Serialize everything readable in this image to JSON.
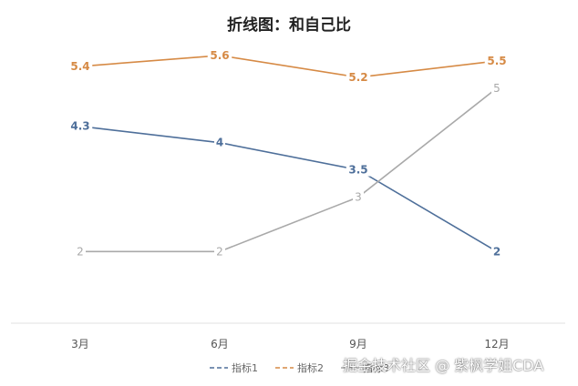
{
  "chart_data": {
    "type": "line",
    "title": "折线图：和自己比",
    "categories": [
      "3月",
      "6月",
      "9月",
      "12月"
    ],
    "series": [
      {
        "name": "指标1",
        "values": [
          4.3,
          4,
          3.5,
          2
        ],
        "color": "#4e6f9a",
        "label_weight": "bold"
      },
      {
        "name": "指标2",
        "values": [
          5.4,
          5.6,
          5.2,
          5.5
        ],
        "color": "#d68a45",
        "label_weight": "bold"
      },
      {
        "name": "指标3",
        "values": [
          2,
          2,
          3,
          5
        ],
        "color": "#a9a9a9",
        "label_weight": "normal"
      }
    ],
    "ylim": [
      0,
      6
    ],
    "grid": false,
    "legend": "bottom-right",
    "xlabel": "",
    "ylabel": ""
  },
  "watermark": "掘金技术社区 @ 紫枫学姐CDA"
}
